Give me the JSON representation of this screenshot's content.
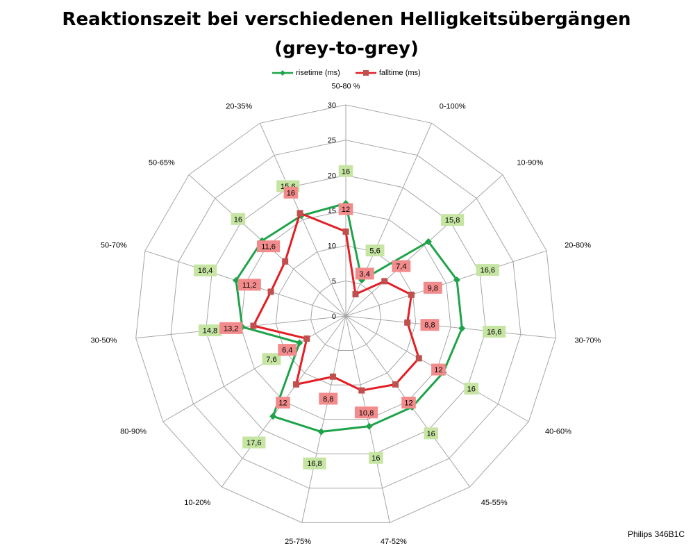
{
  "chart_data": {
    "type": "radar",
    "title": "Reaktionszeit bei verschiedenen Helligkeitsübergängen",
    "subtitle": "(grey-to-grey)",
    "categories": [
      "50-80 %",
      "0-100%",
      "10-90%",
      "20-80%",
      "30-70%",
      "40-60%",
      "45-55%",
      "47-52%",
      "25-75%",
      "10-20%",
      "80-90%",
      "30-50%",
      "50-70%",
      "50-65%",
      "20-35%"
    ],
    "rlim": [
      0,
      30
    ],
    "ticks": [
      "0",
      "5",
      "10",
      "15",
      "20",
      "25",
      "30"
    ],
    "tick_values": [
      0,
      5,
      10,
      15,
      20,
      25,
      30
    ],
    "series": [
      {
        "name": "risetime (ms)",
        "color": "#1fa34a",
        "label_bg": "#c6e5a3",
        "values": [
          16,
          5.6,
          15.8,
          16.6,
          16.6,
          16,
          16,
          16,
          16.8,
          17.6,
          7.6,
          14.8,
          16.4,
          16,
          15.6
        ],
        "labels": [
          "16",
          "5,6",
          "15,8",
          "16,6",
          "16,6",
          "16",
          "16",
          "16",
          "16,8",
          "17,6",
          "7,6",
          "14,8",
          "16,4",
          "16",
          "15,6"
        ]
      },
      {
        "name": "falltime (ms)",
        "color": "#e31e24",
        "label_bg": "#f28b8b",
        "values": [
          12,
          3.4,
          7.4,
          9.8,
          8.8,
          12,
          12,
          10.8,
          8.8,
          12,
          6.4,
          13.2,
          11.2,
          11.6,
          16
        ],
        "labels": [
          "12",
          "3,4",
          "7,4",
          "9,8",
          "8,8",
          "12",
          "12",
          "10,8",
          "8,8",
          "12",
          "6,4",
          "13,2",
          "11,2",
          "11,6",
          "16"
        ]
      }
    ],
    "legend_position": "top-center",
    "grid": true
  },
  "source": "Philips 346B1C"
}
